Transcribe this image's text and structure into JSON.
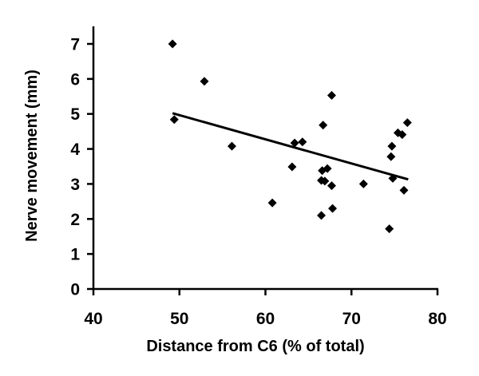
{
  "chart_data": {
    "type": "scatter",
    "title": "",
    "xlabel": "Distance from C6 (% of total)",
    "ylabel": "Nerve movement (mm)",
    "xlim": [
      40,
      80
    ],
    "ylim": [
      0,
      7.5
    ],
    "xticks": [
      40,
      50,
      60,
      70,
      80
    ],
    "yticks": [
      0,
      1,
      2,
      3,
      4,
      5,
      6,
      7
    ],
    "grid": false,
    "legend": null,
    "marker": "diamond",
    "marker_color": "#000000",
    "series": [
      {
        "name": "Nerve movement",
        "points": [
          {
            "x": 49.2,
            "y": 7.0
          },
          {
            "x": 52.9,
            "y": 5.93
          },
          {
            "x": 49.4,
            "y": 4.84
          },
          {
            "x": 56.1,
            "y": 4.08
          },
          {
            "x": 60.8,
            "y": 2.46
          },
          {
            "x": 63.1,
            "y": 3.49
          },
          {
            "x": 63.4,
            "y": 4.17
          },
          {
            "x": 64.3,
            "y": 4.2
          },
          {
            "x": 66.7,
            "y": 4.68
          },
          {
            "x": 67.7,
            "y": 5.53
          },
          {
            "x": 66.6,
            "y": 3.38
          },
          {
            "x": 67.2,
            "y": 3.44
          },
          {
            "x": 66.5,
            "y": 3.1
          },
          {
            "x": 66.9,
            "y": 3.08
          },
          {
            "x": 67.7,
            "y": 2.95
          },
          {
            "x": 67.8,
            "y": 2.3
          },
          {
            "x": 66.5,
            "y": 2.1
          },
          {
            "x": 71.4,
            "y": 3.0
          },
          {
            "x": 74.4,
            "y": 1.72
          },
          {
            "x": 74.8,
            "y": 3.16
          },
          {
            "x": 74.6,
            "y": 3.78
          },
          {
            "x": 74.7,
            "y": 4.08
          },
          {
            "x": 75.4,
            "y": 4.46
          },
          {
            "x": 75.9,
            "y": 4.41
          },
          {
            "x": 76.5,
            "y": 4.75
          },
          {
            "x": 76.1,
            "y": 2.82
          }
        ]
      }
    ],
    "trendline": {
      "type": "linear",
      "start": {
        "x": 49.2,
        "y": 5.02
      },
      "end": {
        "x": 76.6,
        "y": 3.13
      }
    }
  }
}
